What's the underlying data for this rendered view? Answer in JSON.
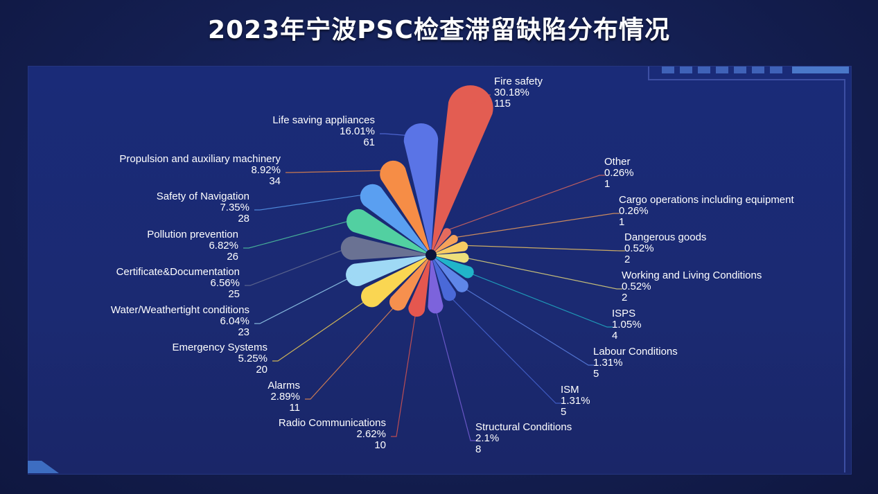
{
  "title": "2023年宁波PSC检查滞留缺陷分布情况",
  "chart_data": {
    "type": "pie",
    "variant": "rose",
    "title": "2023年宁波PSC检查滞留缺陷分布情况",
    "unit": "",
    "series": [
      {
        "name": "Fire safety",
        "percent": "30.18%",
        "value": 115,
        "color": "#e35d52"
      },
      {
        "name": "Other",
        "percent": "0.26%",
        "value": 1,
        "color": "#e56b5d"
      },
      {
        "name": "Cargo operations including equipment",
        "percent": "0.26%",
        "value": 1,
        "color": "#f6a25a"
      },
      {
        "name": "Dangerous goods",
        "percent": "0.52%",
        "value": 2,
        "color": "#f7cc62"
      },
      {
        "name": "Working and Living Conditions",
        "percent": "0.52%",
        "value": 2,
        "color": "#ede07b"
      },
      {
        "name": "ISPS",
        "percent": "1.05%",
        "value": 4,
        "color": "#21b5c9"
      },
      {
        "name": "Labour Conditions",
        "percent": "1.31%",
        "value": 5,
        "color": "#5f86e8"
      },
      {
        "name": "ISM",
        "percent": "1.31%",
        "value": 5,
        "color": "#4a69d8"
      },
      {
        "name": "Structural Conditions",
        "percent": "2.1%",
        "value": 8,
        "color": "#7c63dc"
      },
      {
        "name": "Radio Communications",
        "percent": "2.62%",
        "value": 10,
        "color": "#e5574f"
      },
      {
        "name": "Alarms",
        "percent": "2.89%",
        "value": 11,
        "color": "#f6904e"
      },
      {
        "name": "Emergency Systems",
        "percent": "5.25%",
        "value": 20,
        "color": "#fad652"
      },
      {
        "name": "Water/Weathertight conditions",
        "percent": "6.04%",
        "value": 23,
        "color": "#9fd9f5"
      },
      {
        "name": "Certificate&Documentation",
        "percent": "6.56%",
        "value": 25,
        "color": "#6a7293"
      },
      {
        "name": "Pollution prevention",
        "percent": "6.82%",
        "value": 26,
        "color": "#52d0a1"
      },
      {
        "name": "Safety of Navigation",
        "percent": "7.35%",
        "value": 28,
        "color": "#5a9ff1"
      },
      {
        "name": "Propulsion and auxiliary machinery",
        "percent": "8.92%",
        "value": 34,
        "color": "#f68d46"
      },
      {
        "name": "Life saving appliances",
        "percent": "16.01%",
        "value": 61,
        "color": "#5a74e6"
      }
    ]
  }
}
